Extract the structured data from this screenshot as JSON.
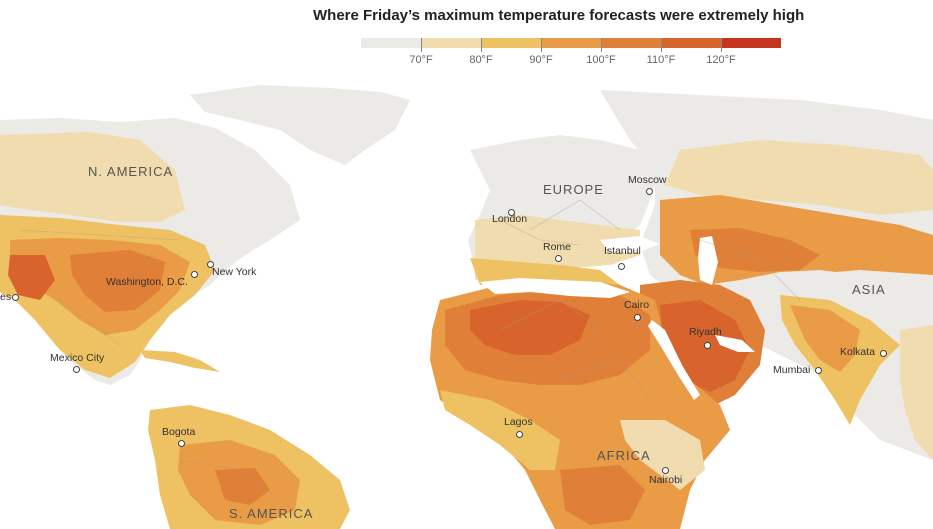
{
  "title": "Where Friday’s maximum temperature forecasts were extremely high",
  "legend": {
    "colors": [
      "#eceae6",
      "#f0dcae",
      "#eec262",
      "#e99b45",
      "#e07f38",
      "#d8632c",
      "#c4341f"
    ],
    "ticks": [
      "70°F",
      "80°F",
      "90°F",
      "100°F",
      "110°F",
      "120°F"
    ]
  },
  "regions": {
    "north_america": "N. AMERICA",
    "europe": "EUROPE",
    "asia": "ASIA",
    "africa": "AFRICA",
    "south_america": "S. AMERICA"
  },
  "cities": {
    "new_york": "New York",
    "washington": "Washington, D.C.",
    "los_angeles": "es",
    "mexico_city": "Mexico City",
    "bogota": "Bogota",
    "london": "London",
    "moscow": "Moscow",
    "rome": "Rome",
    "istanbul": "Istanbul",
    "cairo": "Cairo",
    "riyadh": "Riyadh",
    "kolkata": "Kolkata",
    "mumbai": "Mumbai",
    "lagos": "Lagos",
    "nairobi": "Nairobi"
  }
}
